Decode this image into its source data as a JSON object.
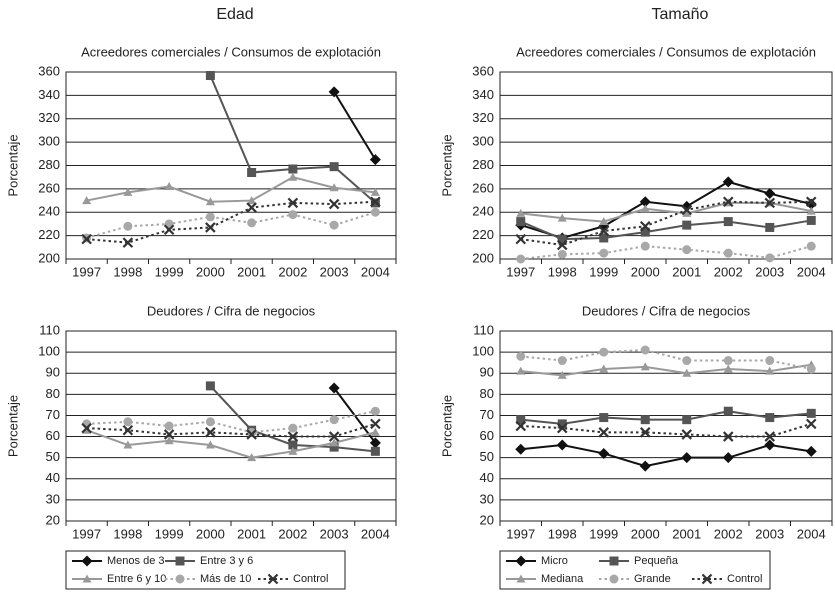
{
  "headers": [
    "Edad",
    "Tamaño"
  ],
  "chart_data": [
    {
      "type": "line",
      "title": "Acreedores comerciales / Consumos de explotación",
      "ylabel": "Porcentaje",
      "categories": [
        "1997",
        "1998",
        "1999",
        "2000",
        "2001",
        "2002",
        "2003",
        "2004"
      ],
      "ylim": [
        200,
        360
      ],
      "yticks": [
        200,
        220,
        240,
        260,
        280,
        300,
        320,
        340,
        360
      ],
      "grid": true,
      "series": [
        {
          "name": "Menos de 3",
          "color": "#111111",
          "marker": "diamond",
          "dash": "solid",
          "values": [
            null,
            null,
            null,
            null,
            null,
            null,
            343,
            285
          ]
        },
        {
          "name": "Entre 3 y 6",
          "color": "#555555",
          "marker": "square",
          "dash": "solid",
          "values": [
            null,
            null,
            null,
            357,
            274,
            277,
            279,
            248
          ]
        },
        {
          "name": "Entre 6 y 10",
          "color": "#999999",
          "marker": "triangle",
          "dash": "solid",
          "values": [
            250,
            257,
            262,
            249,
            250,
            270,
            261,
            257
          ]
        },
        {
          "name": "Más de 10",
          "color": "#a8a8a8",
          "marker": "circle",
          "dash": "dotted",
          "values": [
            218,
            228,
            230,
            236,
            231,
            238,
            229,
            240
          ]
        },
        {
          "name": "Control",
          "color": "#333333",
          "marker": "x",
          "dash": "dotted",
          "values": [
            217,
            214,
            225,
            227,
            244,
            248,
            247,
            249
          ]
        }
      ]
    },
    {
      "type": "line",
      "title": "Deudores / Cifra de negocios",
      "ylabel": "Porcentaje",
      "categories": [
        "1997",
        "1998",
        "1999",
        "2000",
        "2001",
        "2002",
        "2003",
        "2004"
      ],
      "ylim": [
        20,
        110
      ],
      "yticks": [
        20,
        30,
        40,
        50,
        60,
        70,
        80,
        90,
        100,
        110
      ],
      "grid": true,
      "legend": "bottom",
      "series": [
        {
          "name": "Menos de 3",
          "color": "#111111",
          "marker": "diamond",
          "dash": "solid",
          "values": [
            null,
            null,
            null,
            null,
            null,
            null,
            83,
            57
          ]
        },
        {
          "name": "Entre 3 y 6",
          "color": "#555555",
          "marker": "square",
          "dash": "solid",
          "values": [
            null,
            null,
            null,
            84,
            63,
            56,
            55,
            53
          ]
        },
        {
          "name": "Entre 6 y 10",
          "color": "#999999",
          "marker": "triangle",
          "dash": "solid",
          "values": [
            63,
            56,
            58,
            56,
            50,
            53,
            57,
            62
          ]
        },
        {
          "name": "Más de 10",
          "color": "#a8a8a8",
          "marker": "circle",
          "dash": "dotted",
          "values": [
            66,
            67,
            65,
            67,
            62,
            64,
            68,
            72
          ]
        },
        {
          "name": "Control",
          "color": "#333333",
          "marker": "x",
          "dash": "dotted",
          "values": [
            64,
            63,
            61,
            62,
            61,
            60,
            60,
            66
          ]
        }
      ]
    },
    {
      "type": "line",
      "title": "Acreedores comerciales / Consumos de explotación",
      "ylabel": "Porcentaje",
      "categories": [
        "1997",
        "1998",
        "1999",
        "2000",
        "2001",
        "2002",
        "2003",
        "2004"
      ],
      "ylim": [
        200,
        360
      ],
      "yticks": [
        200,
        220,
        240,
        260,
        280,
        300,
        320,
        340,
        360
      ],
      "grid": true,
      "series": [
        {
          "name": "Micro",
          "color": "#111111",
          "marker": "diamond",
          "dash": "solid",
          "values": [
            229,
            218,
            228,
            249,
            245,
            266,
            256,
            247
          ]
        },
        {
          "name": "Pequeña",
          "color": "#555555",
          "marker": "square",
          "dash": "solid",
          "values": [
            232,
            217,
            218,
            223,
            229,
            232,
            227,
            233
          ]
        },
        {
          "name": "Mediana",
          "color": "#999999",
          "marker": "triangle",
          "dash": "solid",
          "values": [
            239,
            235,
            232,
            243,
            239,
            248,
            248,
            241
          ]
        },
        {
          "name": "Grande",
          "color": "#a8a8a8",
          "marker": "circle",
          "dash": "dotted",
          "values": [
            200,
            204,
            205,
            211,
            208,
            205,
            201,
            211
          ]
        },
        {
          "name": "Control",
          "color": "#333333",
          "marker": "x",
          "dash": "dotted",
          "values": [
            217,
            212,
            224,
            228,
            242,
            249,
            248,
            249
          ]
        }
      ]
    },
    {
      "type": "line",
      "title": "Deudores / Cifra de negocios",
      "ylabel": "Porcentaje",
      "categories": [
        "1997",
        "1998",
        "1999",
        "2000",
        "2001",
        "2002",
        "2003",
        "2004"
      ],
      "ylim": [
        20,
        110
      ],
      "yticks": [
        20,
        30,
        40,
        50,
        60,
        70,
        80,
        90,
        100,
        110
      ],
      "grid": true,
      "legend": "bottom",
      "series": [
        {
          "name": "Micro",
          "color": "#111111",
          "marker": "diamond",
          "dash": "solid",
          "values": [
            54,
            56,
            52,
            46,
            50,
            50,
            56,
            53
          ]
        },
        {
          "name": "Pequeña",
          "color": "#555555",
          "marker": "square",
          "dash": "solid",
          "values": [
            68,
            66,
            69,
            68,
            68,
            72,
            69,
            71
          ]
        },
        {
          "name": "Mediana",
          "color": "#999999",
          "marker": "triangle",
          "dash": "solid",
          "values": [
            91,
            89,
            92,
            93,
            90,
            92,
            91,
            94
          ]
        },
        {
          "name": "Grande",
          "color": "#a8a8a8",
          "marker": "circle",
          "dash": "dotted",
          "values": [
            98,
            96,
            100,
            101,
            96,
            96,
            96,
            92
          ]
        },
        {
          "name": "Control",
          "color": "#333333",
          "marker": "x",
          "dash": "dotted",
          "values": [
            65,
            64,
            62,
            62,
            61,
            60,
            60,
            66
          ]
        }
      ]
    }
  ]
}
